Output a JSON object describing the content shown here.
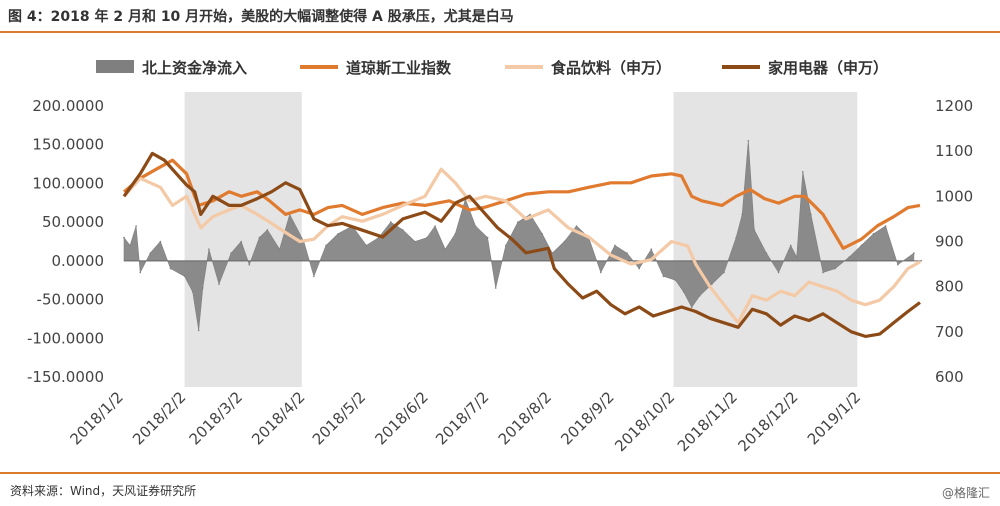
{
  "figure": {
    "title": "图 4：2018 年 2 月和 10 月开始，美股的大幅调整使得 A 股承压，尤其是白马",
    "source": "资料来源：Wind，天风证券研究所",
    "watermark": "@格隆汇"
  },
  "chart_data": {
    "type": "line",
    "x_tick_labels": [
      "2018/1/2",
      "2018/2/2",
      "2018/3/2",
      "2018/4/2",
      "2018/5/2",
      "2018/6/2",
      "2018/7/2",
      "2018/8/2",
      "2018/9/2",
      "2018/10/2",
      "2018/11/2",
      "2018/12/2",
      "2019/1/2"
    ],
    "y_left_ticks": [
      "200.0000",
      "150.0000",
      "100.0000",
      "50.0000",
      "0.0000",
      "-50.0000",
      "-100.0000",
      "-150.0000"
    ],
    "y_left_range": [
      -150,
      200
    ],
    "y_right_ticks": [
      "1200",
      "1100",
      "1000",
      "900",
      "800",
      "700",
      "600"
    ],
    "y_right_range": [
      600,
      1200
    ],
    "grid": false,
    "legend_position": "top",
    "shaded_periods": [
      {
        "start": "2018/2/1",
        "end": "2018/3/31"
      },
      {
        "start": "2018/10/1",
        "end": "2018/12/31"
      }
    ],
    "series": [
      {
        "name": "北上资金净流入",
        "kind": "area",
        "axis": "left",
        "color": "#7f7f7f",
        "x": [
          "2018/1/2",
          "2018/1/5",
          "2018/1/8",
          "2018/1/10",
          "2018/1/15",
          "2018/1/20",
          "2018/1/25",
          "2018/2/1",
          "2018/2/5",
          "2018/2/8",
          "2018/2/10",
          "2018/2/13",
          "2018/2/18",
          "2018/2/24",
          "2018/3/1",
          "2018/3/5",
          "2018/3/10",
          "2018/3/14",
          "2018/3/20",
          "2018/3/25",
          "2018/4/1",
          "2018/4/6",
          "2018/4/12",
          "2018/4/18",
          "2018/4/25",
          "2018/5/2",
          "2018/5/8",
          "2018/5/14",
          "2018/5/20",
          "2018/5/26",
          "2018/6/1",
          "2018/6/5",
          "2018/6/10",
          "2018/6/15",
          "2018/6/20",
          "2018/6/25",
          "2018/7/1",
          "2018/7/5",
          "2018/7/10",
          "2018/7/16",
          "2018/7/22",
          "2018/7/28",
          "2018/8/2",
          "2018/8/8",
          "2018/8/14",
          "2018/8/20",
          "2018/8/26",
          "2018/9/2",
          "2018/9/8",
          "2018/9/14",
          "2018/9/20",
          "2018/9/26",
          "2018/10/2",
          "2018/10/6",
          "2018/10/10",
          "2018/10/14",
          "2018/10/20",
          "2018/10/26",
          "2018/11/1",
          "2018/11/4",
          "2018/11/7",
          "2018/11/10",
          "2018/11/16",
          "2018/11/22",
          "2018/11/28",
          "2018/12/1",
          "2018/12/4",
          "2018/12/8",
          "2018/12/14",
          "2018/12/20",
          "2018/12/27",
          "2019/1/2",
          "2019/1/8",
          "2019/1/14",
          "2019/1/20",
          "2019/1/28"
        ],
        "values": [
          30,
          20,
          45,
          -15,
          10,
          25,
          -10,
          -20,
          -40,
          -90,
          -35,
          15,
          -30,
          10,
          25,
          -5,
          30,
          40,
          15,
          60,
          25,
          -20,
          20,
          35,
          45,
          20,
          30,
          50,
          40,
          25,
          30,
          45,
          15,
          35,
          80,
          45,
          30,
          -35,
          20,
          50,
          60,
          35,
          10,
          25,
          45,
          30,
          -15,
          20,
          10,
          -10,
          15,
          -20,
          -25,
          -40,
          -60,
          -45,
          -30,
          -15,
          30,
          60,
          155,
          40,
          10,
          -15,
          20,
          5,
          115,
          60,
          -15,
          -10,
          5,
          20,
          35,
          45,
          -5,
          10
        ]
      },
      {
        "name": "道琼斯工业指数",
        "kind": "line",
        "axis": "right",
        "color": "#e07a2f",
        "x": [
          "2018/1/2",
          "2018/1/10",
          "2018/1/18",
          "2018/1/26",
          "2018/2/2",
          "2018/2/6",
          "2018/2/8",
          "2018/2/15",
          "2018/2/23",
          "2018/3/1",
          "2018/3/9",
          "2018/3/15",
          "2018/3/23",
          "2018/3/30",
          "2018/4/6",
          "2018/4/13",
          "2018/4/20",
          "2018/4/30",
          "2018/5/10",
          "2018/5/20",
          "2018/5/31",
          "2018/6/12",
          "2018/6/22",
          "2018/6/29",
          "2018/7/10",
          "2018/7/20",
          "2018/7/31",
          "2018/8/10",
          "2018/8/20",
          "2018/8/31",
          "2018/9/10",
          "2018/9/20",
          "2018/9/30",
          "2018/10/5",
          "2018/10/10",
          "2018/10/15",
          "2018/10/25",
          "2018/11/1",
          "2018/11/8",
          "2018/11/15",
          "2018/11/22",
          "2018/11/30",
          "2018/12/5",
          "2018/12/14",
          "2018/12/24",
          "2019/1/2",
          "2019/1/10",
          "2019/1/18",
          "2019/1/25",
          "2019/1/31"
        ],
        "values": [
          1010,
          1040,
          1060,
          1080,
          1050,
          1000,
          980,
          990,
          1010,
          1000,
          1010,
          990,
          960,
          970,
          960,
          975,
          980,
          960,
          975,
          985,
          980,
          990,
          970,
          975,
          990,
          1005,
          1010,
          1010,
          1020,
          1030,
          1030,
          1045,
          1050,
          1045,
          1000,
          990,
          980,
          1000,
          1015,
          995,
          985,
          1000,
          1000,
          960,
          885,
          905,
          935,
          955,
          975,
          980
        ]
      },
      {
        "name": "食品饮料（申万）",
        "kind": "line",
        "axis": "right",
        "color": "#f4c9a6",
        "x": [
          "2018/1/2",
          "2018/1/10",
          "2018/1/20",
          "2018/1/26",
          "2018/2/2",
          "2018/2/6",
          "2018/2/9",
          "2018/2/15",
          "2018/2/23",
          "2018/3/1",
          "2018/3/9",
          "2018/3/16",
          "2018/3/23",
          "2018/3/30",
          "2018/4/6",
          "2018/4/13",
          "2018/4/20",
          "2018/4/30",
          "2018/5/10",
          "2018/5/20",
          "2018/5/31",
          "2018/6/8",
          "2018/6/15",
          "2018/6/22",
          "2018/6/30",
          "2018/7/10",
          "2018/7/20",
          "2018/7/31",
          "2018/8/10",
          "2018/8/20",
          "2018/8/31",
          "2018/9/10",
          "2018/9/20",
          "2018/9/30",
          "2018/10/8",
          "2018/10/12",
          "2018/10/19",
          "2018/10/26",
          "2018/11/2",
          "2018/11/9",
          "2018/11/16",
          "2018/11/23",
          "2018/11/30",
          "2018/12/7",
          "2018/12/14",
          "2018/12/21",
          "2018/12/28",
          "2019/1/4",
          "2019/1/11",
          "2019/1/18",
          "2019/1/25",
          "2019/1/31"
        ],
        "values": [
          1000,
          1040,
          1020,
          980,
          1000,
          960,
          930,
          955,
          970,
          980,
          960,
          940,
          920,
          900,
          905,
          935,
          955,
          945,
          960,
          980,
          1000,
          1060,
          1030,
          990,
          1000,
          990,
          950,
          970,
          930,
          910,
          870,
          850,
          860,
          900,
          890,
          850,
          800,
          760,
          720,
          780,
          770,
          790,
          780,
          810,
          800,
          790,
          770,
          760,
          770,
          800,
          840,
          855
        ]
      },
      {
        "name": "家用电器（申万）",
        "kind": "line",
        "axis": "right",
        "color": "#8c4a17",
        "x": [
          "2018/1/2",
          "2018/1/10",
          "2018/1/16",
          "2018/1/22",
          "2018/1/28",
          "2018/2/2",
          "2018/2/6",
          "2018/2/9",
          "2018/2/15",
          "2018/2/23",
          "2018/3/1",
          "2018/3/9",
          "2018/3/16",
          "2018/3/23",
          "2018/3/30",
          "2018/4/6",
          "2018/4/13",
          "2018/4/20",
          "2018/4/30",
          "2018/5/10",
          "2018/5/20",
          "2018/5/31",
          "2018/6/8",
          "2018/6/15",
          "2018/6/22",
          "2018/6/29",
          "2018/7/6",
          "2018/7/13",
          "2018/7/20",
          "2018/7/31",
          "2018/8/3",
          "2018/8/10",
          "2018/8/17",
          "2018/8/24",
          "2018/8/31",
          "2018/9/7",
          "2018/9/14",
          "2018/9/21",
          "2018/9/28",
          "2018/10/5",
          "2018/10/12",
          "2018/10/19",
          "2018/10/26",
          "2018/11/2",
          "2018/11/9",
          "2018/11/16",
          "2018/11/23",
          "2018/11/30",
          "2018/12/7",
          "2018/12/14",
          "2018/12/21",
          "2018/12/28",
          "2019/1/4",
          "2019/1/11",
          "2019/1/18",
          "2019/1/25",
          "2019/1/31"
        ],
        "values": [
          1000,
          1050,
          1095,
          1080,
          1050,
          1025,
          1010,
          960,
          1000,
          980,
          980,
          995,
          1010,
          1030,
          1015,
          950,
          935,
          940,
          925,
          910,
          950,
          965,
          945,
          985,
          1000,
          965,
          930,
          905,
          875,
          885,
          840,
          805,
          775,
          790,
          760,
          740,
          755,
          735,
          745,
          755,
          745,
          730,
          720,
          710,
          750,
          740,
          715,
          735,
          725,
          740,
          720,
          700,
          690,
          695,
          720,
          745,
          765
        ]
      }
    ]
  }
}
